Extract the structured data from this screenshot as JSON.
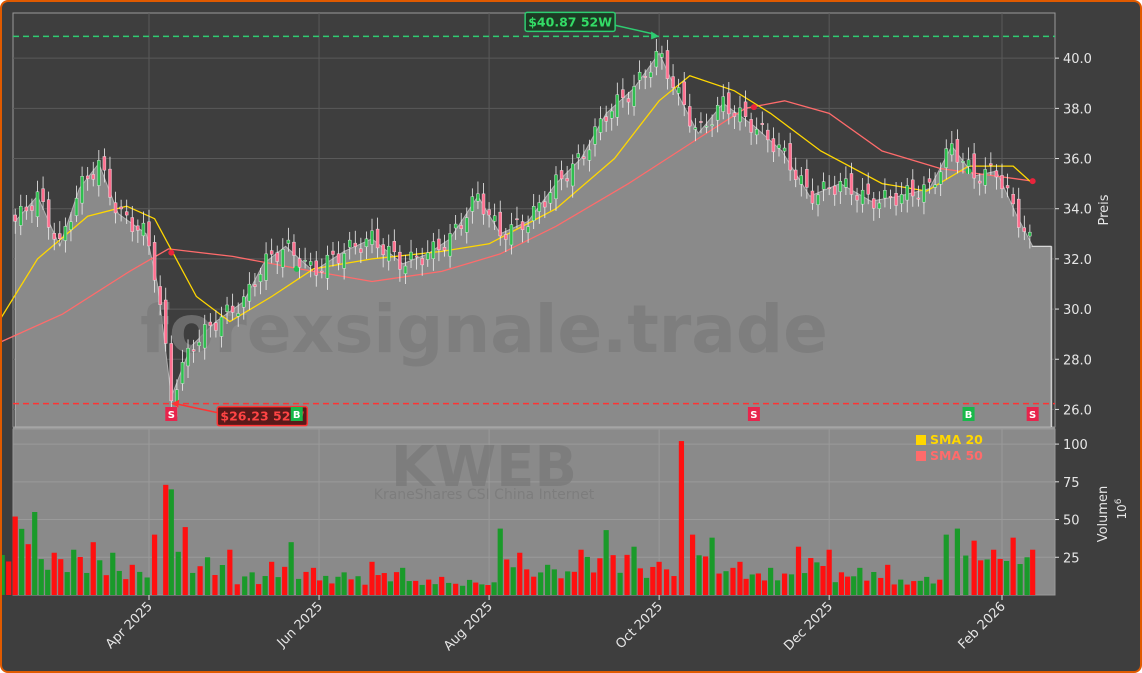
{
  "chart_data": {
    "type": "candlestick",
    "ticker": "KWEB",
    "watermark": "forexsignale.trade",
    "subtitle": "KraneShares CSI China Internet",
    "price_panel": {
      "ylabel": "Preis",
      "yticks": [
        "26.0",
        "28.0",
        "30.0",
        "32.0",
        "34.0",
        "36.0",
        "38.0",
        "40.0"
      ],
      "ylim": [
        25.3,
        41.8
      ],
      "high_52w": {
        "value": 40.87,
        "label": "$40.87 52W",
        "date": "2025-10-01"
      },
      "low_52w": {
        "value": 26.23,
        "label": "$26.23 52W",
        "date": "2025-04-09"
      },
      "last_close": 32.5,
      "close_series": [
        {
          "date": "2025-02-12",
          "close": 33.5
        },
        {
          "date": "2025-02-20",
          "close": 34.5
        },
        {
          "date": "2025-02-28",
          "close": 32.5
        },
        {
          "date": "2025-03-07",
          "close": 34.8
        },
        {
          "date": "2025-03-14",
          "close": 35.8
        },
        {
          "date": "2025-03-21",
          "close": 33.8
        },
        {
          "date": "2025-03-31",
          "close": 33.0
        },
        {
          "date": "2025-04-04",
          "close": 31.0
        },
        {
          "date": "2025-04-09",
          "close": 26.5
        },
        {
          "date": "2025-04-16",
          "close": 28.5
        },
        {
          "date": "2025-04-25",
          "close": 29.5
        },
        {
          "date": "2025-05-05",
          "close": 30.3
        },
        {
          "date": "2025-05-12",
          "close": 31.8
        },
        {
          "date": "2025-05-20",
          "close": 32.5
        },
        {
          "date": "2025-05-30",
          "close": 31.5
        },
        {
          "date": "2025-06-10",
          "close": 32.3
        },
        {
          "date": "2025-06-20",
          "close": 32.8
        },
        {
          "date": "2025-07-01",
          "close": 31.8
        },
        {
          "date": "2025-07-10",
          "close": 32.2
        },
        {
          "date": "2025-07-18",
          "close": 32.8
        },
        {
          "date": "2025-07-28",
          "close": 34.5
        },
        {
          "date": "2025-08-05",
          "close": 33.0
        },
        {
          "date": "2025-08-15",
          "close": 33.5
        },
        {
          "date": "2025-08-25",
          "close": 35.0
        },
        {
          "date": "2025-09-03",
          "close": 36.0
        },
        {
          "date": "2025-09-12",
          "close": 37.8
        },
        {
          "date": "2025-09-22",
          "close": 38.8
        },
        {
          "date": "2025-10-01",
          "close": 40.2
        },
        {
          "date": "2025-10-08",
          "close": 38.5
        },
        {
          "date": "2025-10-15",
          "close": 37.0
        },
        {
          "date": "2025-10-24",
          "close": 38.2
        },
        {
          "date": "2025-11-04",
          "close": 37.3
        },
        {
          "date": "2025-11-14",
          "close": 36.3
        },
        {
          "date": "2025-11-24",
          "close": 34.5
        },
        {
          "date": "2025-12-05",
          "close": 35.0
        },
        {
          "date": "2025-12-16",
          "close": 34.3
        },
        {
          "date": "2025-12-26",
          "close": 34.5
        },
        {
          "date": "2026-01-06",
          "close": 34.8
        },
        {
          "date": "2026-01-14",
          "close": 36.5
        },
        {
          "date": "2026-01-22",
          "close": 35.3
        },
        {
          "date": "2026-01-30",
          "close": 35.5
        },
        {
          "date": "2026-02-06",
          "close": 33.8
        },
        {
          "date": "2026-02-12",
          "close": 32.5
        }
      ],
      "sma20": [
        {
          "date": "2025-02-05",
          "v": 29.3
        },
        {
          "date": "2025-02-20",
          "v": 32.0
        },
        {
          "date": "2025-03-10",
          "v": 33.7
        },
        {
          "date": "2025-03-24",
          "v": 34.1
        },
        {
          "date": "2025-04-03",
          "v": 33.6
        },
        {
          "date": "2025-04-18",
          "v": 30.5
        },
        {
          "date": "2025-04-30",
          "v": 29.5
        },
        {
          "date": "2025-05-15",
          "v": 30.5
        },
        {
          "date": "2025-05-30",
          "v": 31.6
        },
        {
          "date": "2025-06-20",
          "v": 32.0
        },
        {
          "date": "2025-07-15",
          "v": 32.3
        },
        {
          "date": "2025-08-01",
          "v": 32.6
        },
        {
          "date": "2025-08-25",
          "v": 34.0
        },
        {
          "date": "2025-09-15",
          "v": 36.0
        },
        {
          "date": "2025-10-01",
          "v": 38.3
        },
        {
          "date": "2025-10-12",
          "v": 39.3
        },
        {
          "date": "2025-10-28",
          "v": 38.7
        },
        {
          "date": "2025-11-10",
          "v": 37.8
        },
        {
          "date": "2025-11-28",
          "v": 36.3
        },
        {
          "date": "2025-12-20",
          "v": 35.0
        },
        {
          "date": "2026-01-05",
          "v": 34.7
        },
        {
          "date": "2026-01-20",
          "v": 35.7
        },
        {
          "date": "2026-02-05",
          "v": 35.7
        },
        {
          "date": "2026-02-12",
          "v": 35.0
        }
      ],
      "sma50": [
        {
          "date": "2025-02-05",
          "v": 28.6
        },
        {
          "date": "2025-03-01",
          "v": 29.8
        },
        {
          "date": "2025-03-25",
          "v": 31.5
        },
        {
          "date": "2025-04-08",
          "v": 32.4
        },
        {
          "date": "2025-05-01",
          "v": 32.1
        },
        {
          "date": "2025-05-25",
          "v": 31.6
        },
        {
          "date": "2025-06-20",
          "v": 31.1
        },
        {
          "date": "2025-07-15",
          "v": 31.5
        },
        {
          "date": "2025-08-05",
          "v": 32.2
        },
        {
          "date": "2025-08-25",
          "v": 33.3
        },
        {
          "date": "2025-09-20",
          "v": 35.0
        },
        {
          "date": "2025-10-15",
          "v": 36.8
        },
        {
          "date": "2025-11-01",
          "v": 38.0
        },
        {
          "date": "2025-11-15",
          "v": 38.3
        },
        {
          "date": "2025-12-01",
          "v": 37.8
        },
        {
          "date": "2025-12-20",
          "v": 36.3
        },
        {
          "date": "2026-01-10",
          "v": 35.6
        },
        {
          "date": "2026-01-30",
          "v": 35.3
        },
        {
          "date": "2026-02-12",
          "v": 35.1
        }
      ],
      "signals": [
        {
          "date": "2025-04-09",
          "type": "S"
        },
        {
          "date": "2025-05-24",
          "type": "B"
        },
        {
          "date": "2025-11-04",
          "type": "S"
        },
        {
          "date": "2026-01-20",
          "type": "B"
        },
        {
          "date": "2026-02-12",
          "type": "S"
        }
      ]
    },
    "volume_panel": {
      "ylabel": "Volumen",
      "unit": "10^6",
      "unit_base": "10",
      "unit_exp": "6",
      "yticks": [
        "25",
        "50",
        "75",
        "100"
      ],
      "ylim": [
        0,
        110
      ],
      "legend": [
        {
          "name": "SMA 20",
          "color": "#ffd700"
        },
        {
          "name": "SMA 50",
          "color": "#ff6b6b"
        }
      ],
      "bars": [
        {
          "date": "2025-02-05",
          "v": 32,
          "c": "g"
        },
        {
          "date": "2025-02-12",
          "v": 52,
          "c": "r"
        },
        {
          "date": "2025-02-19",
          "v": 55,
          "c": "g"
        },
        {
          "date": "2025-02-26",
          "v": 28,
          "c": "r"
        },
        {
          "date": "2025-03-05",
          "v": 30,
          "c": "g"
        },
        {
          "date": "2025-03-12",
          "v": 35,
          "c": "r"
        },
        {
          "date": "2025-03-19",
          "v": 28,
          "c": "g"
        },
        {
          "date": "2025-03-26",
          "v": 20,
          "c": "r"
        },
        {
          "date": "2025-04-03",
          "v": 40,
          "c": "r"
        },
        {
          "date": "2025-04-07",
          "v": 73,
          "c": "r"
        },
        {
          "date": "2025-04-09",
          "v": 70,
          "c": "g"
        },
        {
          "date": "2025-04-14",
          "v": 45,
          "c": "r"
        },
        {
          "date": "2025-04-22",
          "v": 25,
          "c": "g"
        },
        {
          "date": "2025-04-30",
          "v": 30,
          "c": "r"
        },
        {
          "date": "2025-05-08",
          "v": 15,
          "c": "g"
        },
        {
          "date": "2025-05-15",
          "v": 22,
          "c": "r"
        },
        {
          "date": "2025-05-22",
          "v": 35,
          "c": "g"
        },
        {
          "date": "2025-05-30",
          "v": 18,
          "c": "r"
        },
        {
          "date": "2025-06-10",
          "v": 15,
          "c": "g"
        },
        {
          "date": "2025-06-20",
          "v": 22,
          "c": "r"
        },
        {
          "date": "2025-07-01",
          "v": 18,
          "c": "g"
        },
        {
          "date": "2025-07-15",
          "v": 12,
          "c": "r"
        },
        {
          "date": "2025-07-25",
          "v": 10,
          "c": "g"
        },
        {
          "date": "2025-08-05",
          "v": 44,
          "c": "g"
        },
        {
          "date": "2025-08-12",
          "v": 28,
          "c": "r"
        },
        {
          "date": "2025-08-22",
          "v": 20,
          "c": "g"
        },
        {
          "date": "2025-09-03",
          "v": 30,
          "c": "r"
        },
        {
          "date": "2025-09-12",
          "v": 43,
          "c": "g"
        },
        {
          "date": "2025-09-22",
          "v": 32,
          "c": "g"
        },
        {
          "date": "2025-10-01",
          "v": 22,
          "c": "r"
        },
        {
          "date": "2025-10-09",
          "v": 102,
          "c": "r"
        },
        {
          "date": "2025-10-13",
          "v": 40,
          "c": "r"
        },
        {
          "date": "2025-10-20",
          "v": 38,
          "c": "g"
        },
        {
          "date": "2025-10-30",
          "v": 22,
          "c": "r"
        },
        {
          "date": "2025-11-10",
          "v": 18,
          "c": "g"
        },
        {
          "date": "2025-11-20",
          "v": 32,
          "c": "r"
        },
        {
          "date": "2025-12-01",
          "v": 30,
          "c": "r"
        },
        {
          "date": "2025-12-12",
          "v": 18,
          "c": "g"
        },
        {
          "date": "2025-12-22",
          "v": 20,
          "c": "r"
        },
        {
          "date": "2026-01-05",
          "v": 12,
          "c": "g"
        },
        {
          "date": "2026-01-12",
          "v": 40,
          "c": "g"
        },
        {
          "date": "2026-01-16",
          "v": 44,
          "c": "g"
        },
        {
          "date": "2026-01-22",
          "v": 36,
          "c": "r"
        },
        {
          "date": "2026-01-29",
          "v": 30,
          "c": "r"
        },
        {
          "date": "2026-02-05",
          "v": 38,
          "c": "r"
        },
        {
          "date": "2026-02-10",
          "v": 25,
          "c": "g"
        },
        {
          "date": "2026-02-12",
          "v": 30,
          "c": "r"
        }
      ]
    },
    "x_axis": {
      "ticks": [
        {
          "label": "Apr 2025",
          "date": "2025-04-01"
        },
        {
          "label": "Jun 2025",
          "date": "2025-06-01"
        },
        {
          "label": "Aug 2025",
          "date": "2025-08-01"
        },
        {
          "label": "Oct 2025",
          "date": "2025-10-01"
        },
        {
          "label": "Dec 2025",
          "date": "2025-12-01"
        },
        {
          "label": "Feb 2026",
          "date": "2026-02-01"
        }
      ]
    },
    "colors": {
      "background": "#3e3e3e",
      "plot_fill": "#8a8a8a",
      "up": "#1a9a2a",
      "down": "#ff1010",
      "high_line": "#2ecc71",
      "low_line": "#ff3333",
      "sma20": "#ffd700",
      "sma50": "#ff6b6b",
      "border": "#e05a00"
    }
  }
}
